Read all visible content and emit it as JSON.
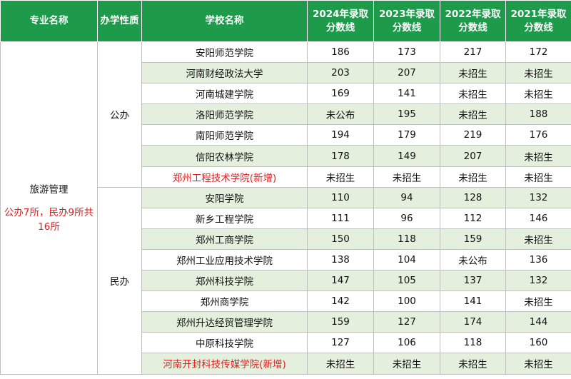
{
  "headers": {
    "major": "专业名称",
    "nature": "办学性质",
    "school": "学校名称",
    "y2024": [
      "2024年录取",
      "分数线"
    ],
    "y2023": [
      "2023年录取",
      "分数线"
    ],
    "y2022": [
      "2022年录取",
      "分数线"
    ],
    "y2021": [
      "2021年录取",
      "分数线"
    ]
  },
  "major": {
    "name": "旅游管理",
    "note": "公办7所，民办9所共16所"
  },
  "groups": [
    {
      "nature": "公办",
      "rows": [
        {
          "school": "安阳师范学院",
          "s2024": "186",
          "s2023": "173",
          "s2022": "217",
          "s2021": "172",
          "highlight": false
        },
        {
          "school": "河南财经政法大学",
          "s2024": "203",
          "s2023": "207",
          "s2022": "未招生",
          "s2021": "未招生",
          "highlight": false
        },
        {
          "school": "河南城建学院",
          "s2024": "169",
          "s2023": "141",
          "s2022": "未招生",
          "s2021": "未招生",
          "highlight": false
        },
        {
          "school": "洛阳师范学院",
          "s2024": "未公布",
          "s2023": "195",
          "s2022": "未招生",
          "s2021": "188",
          "highlight": false
        },
        {
          "school": "南阳师范学院",
          "s2024": "194",
          "s2023": "179",
          "s2022": "219",
          "s2021": "176",
          "highlight": false
        },
        {
          "school": "信阳农林学院",
          "s2024": "178",
          "s2023": "149",
          "s2022": "207",
          "s2021": "未招生",
          "highlight": false
        },
        {
          "school": "郑州工程技术学院(新增)",
          "s2024": "未招生",
          "s2023": "未招生",
          "s2022": "未招生",
          "s2021": "未招生",
          "highlight": true
        }
      ]
    },
    {
      "nature": "民办",
      "rows": [
        {
          "school": "安阳学院",
          "s2024": "110",
          "s2023": "94",
          "s2022": "128",
          "s2021": "132",
          "highlight": false
        },
        {
          "school": "新乡工程学院",
          "s2024": "111",
          "s2023": "96",
          "s2022": "112",
          "s2021": "146",
          "highlight": false
        },
        {
          "school": "郑州工商学院",
          "s2024": "150",
          "s2023": "118",
          "s2022": "159",
          "s2021": "未招生",
          "highlight": false
        },
        {
          "school": "郑州工业应用技术学院",
          "s2024": "138",
          "s2023": "104",
          "s2022": "未公布",
          "s2021": "136",
          "highlight": false
        },
        {
          "school": "郑州科技学院",
          "s2024": "147",
          "s2023": "105",
          "s2022": "137",
          "s2021": "132",
          "highlight": false
        },
        {
          "school": "郑州商学院",
          "s2024": "142",
          "s2023": "100",
          "s2022": "141",
          "s2021": "未招生",
          "highlight": false
        },
        {
          "school": "郑州升达经贸管理学院",
          "s2024": "159",
          "s2023": "127",
          "s2022": "174",
          "s2021": "144",
          "highlight": false
        },
        {
          "school": "中原科技学院",
          "s2024": "127",
          "s2023": "106",
          "s2022": "118",
          "s2021": "160",
          "highlight": false
        },
        {
          "school": "河南开封科技传媒学院(新增)",
          "s2024": "未招生",
          "s2023": "未招生",
          "s2022": "未招生",
          "s2021": "未招生",
          "highlight": true
        }
      ]
    }
  ],
  "colors": {
    "header_bg": "#1e9a4b",
    "stripe_bg": "#e4efdd",
    "highlight_text": "#e02020"
  }
}
